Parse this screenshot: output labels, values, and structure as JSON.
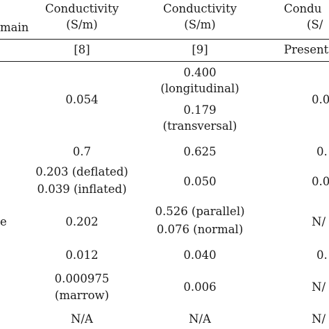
{
  "header": {
    "domain_fragment": "main",
    "col1": {
      "title": "Conductivity",
      "unit": "(S/m)",
      "ref": "[8]"
    },
    "col2": {
      "title": "Conductivity",
      "unit": "(S/m)",
      "ref": "[9]"
    },
    "col3": {
      "title": "Condu",
      "unit": "(S/",
      "ref": "Present"
    }
  },
  "rows": [
    {
      "label": "",
      "col1": [
        "0.054"
      ],
      "col2": [
        "0.400",
        "(longitudinal)",
        "0.179",
        "(transversal)"
      ],
      "col3": [
        "0.0"
      ]
    },
    {
      "label": "",
      "col1": [
        "0.7"
      ],
      "col2": [
        "0.625"
      ],
      "col3": [
        "0."
      ]
    },
    {
      "label": "",
      "col1": [
        "0.203 (deflated)",
        "0.039 (inflated)"
      ],
      "col2": [
        "0.050"
      ],
      "col3": [
        "0.0"
      ]
    },
    {
      "label": "e",
      "col1": [
        "0.202"
      ],
      "col2": [
        "0.526 (parallel)",
        "0.076 (normal)"
      ],
      "col3": [
        "N/"
      ]
    },
    {
      "label": "",
      "col1": [
        "0.012"
      ],
      "col2": [
        "0.040"
      ],
      "col3": [
        "0."
      ]
    },
    {
      "label": "",
      "col1": [
        "0.000975",
        "(marrow)"
      ],
      "col2": [
        "0.006"
      ],
      "col3": [
        "N/"
      ]
    },
    {
      "label": "",
      "col1": [
        "N/A"
      ],
      "col2": [
        "N/A"
      ],
      "col3": [
        "N/"
      ]
    }
  ]
}
